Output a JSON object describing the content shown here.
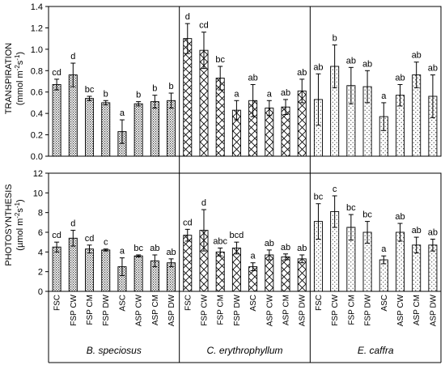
{
  "chart_data": [
    {
      "type": "bar",
      "ylabel_main": "TRANSPIRATION",
      "ylabel_unit": "(mmol m",
      "ylabel_sup1": "-2",
      "ylabel_mid": "s",
      "ylabel_sup2": "-1",
      "ylabel_end": ")",
      "ylim": [
        0,
        1.4
      ],
      "yticks": [
        "0.0",
        "0.2",
        "0.4",
        "0.6",
        "0.8",
        "1.0",
        "1.2",
        "1.4"
      ],
      "groups": [
        {
          "name": "B. speciosus",
          "pattern": "dots-dense",
          "values": [
            0.67,
            0.76,
            0.54,
            0.5,
            0.23,
            0.49,
            0.51,
            0.52
          ],
          "errors": [
            0.05,
            0.11,
            0.02,
            0.02,
            0.11,
            0.02,
            0.06,
            0.07
          ],
          "labels": [
            "cd",
            "d",
            "bc",
            "b",
            "a",
            "b",
            "b",
            "b"
          ]
        },
        {
          "name": "C. erythrophyllum",
          "pattern": "crosshatch",
          "values": [
            1.1,
            0.99,
            0.73,
            0.43,
            0.52,
            0.45,
            0.46,
            0.61
          ],
          "errors": [
            0.14,
            0.17,
            0.11,
            0.09,
            0.15,
            0.07,
            0.07,
            0.11
          ],
          "labels": [
            "d",
            "cd",
            "bc",
            "a",
            "ab",
            "a",
            "ab",
            "ab"
          ]
        },
        {
          "name": "E. caffra",
          "pattern": "dots-sparse",
          "values": [
            0.53,
            0.84,
            0.66,
            0.65,
            0.37,
            0.57,
            0.76,
            0.56
          ],
          "errors": [
            0.24,
            0.2,
            0.17,
            0.15,
            0.13,
            0.1,
            0.12,
            0.2
          ],
          "labels": [
            "ab",
            "b",
            "ab",
            "ab",
            "a",
            "ab",
            "ab",
            "ab"
          ]
        }
      ]
    },
    {
      "type": "bar",
      "ylabel_main": "PHOTOSYNTHESIS",
      "ylabel_unit": "(µmol m",
      "ylabel_sup1": "-2",
      "ylabel_mid": "s",
      "ylabel_sup2": "-1",
      "ylabel_end": ")",
      "ylim": [
        0,
        12
      ],
      "yticks": [
        "0",
        "2",
        "4",
        "6",
        "8",
        "10",
        "12"
      ],
      "groups": [
        {
          "name": "B. speciosus",
          "pattern": "dots-dense",
          "values": [
            4.5,
            5.4,
            4.3,
            4.2,
            2.5,
            3.6,
            3.1,
            2.9
          ],
          "errors": [
            0.5,
            0.8,
            0.4,
            0.1,
            0.9,
            0.1,
            0.6,
            0.4
          ],
          "labels": [
            "cd",
            "d",
            "cd",
            "c",
            "a",
            "bc",
            "ab",
            "ab"
          ]
        },
        {
          "name": "C. erythrophyllum",
          "pattern": "crosshatch",
          "values": [
            5.7,
            6.2,
            4.0,
            4.4,
            2.5,
            3.7,
            3.5,
            3.3
          ],
          "errors": [
            0.6,
            2.1,
            0.4,
            0.6,
            0.4,
            0.5,
            0.3,
            0.4
          ],
          "labels": [
            "cd",
            "d",
            "abc",
            "bcd",
            "a",
            "ab",
            "ab",
            "ab"
          ]
        },
        {
          "name": "E. caffra",
          "pattern": "dots-sparse",
          "values": [
            7.1,
            8.1,
            6.5,
            6.0,
            3.2,
            6.0,
            4.7,
            4.7
          ],
          "errors": [
            1.8,
            1.6,
            1.3,
            1.1,
            0.4,
            0.9,
            0.8,
            0.6
          ],
          "labels": [
            "bc",
            "c",
            "bc",
            "bc",
            "a",
            "ab",
            "ab",
            "ab"
          ]
        }
      ]
    }
  ],
  "categories": [
    "FSC",
    "FSP CW",
    "FSP CM",
    "FSP DW",
    "ASC",
    "ASP CW",
    "ASP CM",
    "ASP DW"
  ],
  "species": [
    "B. speciosus",
    "C. erythrophyllum",
    "E. caffra"
  ]
}
